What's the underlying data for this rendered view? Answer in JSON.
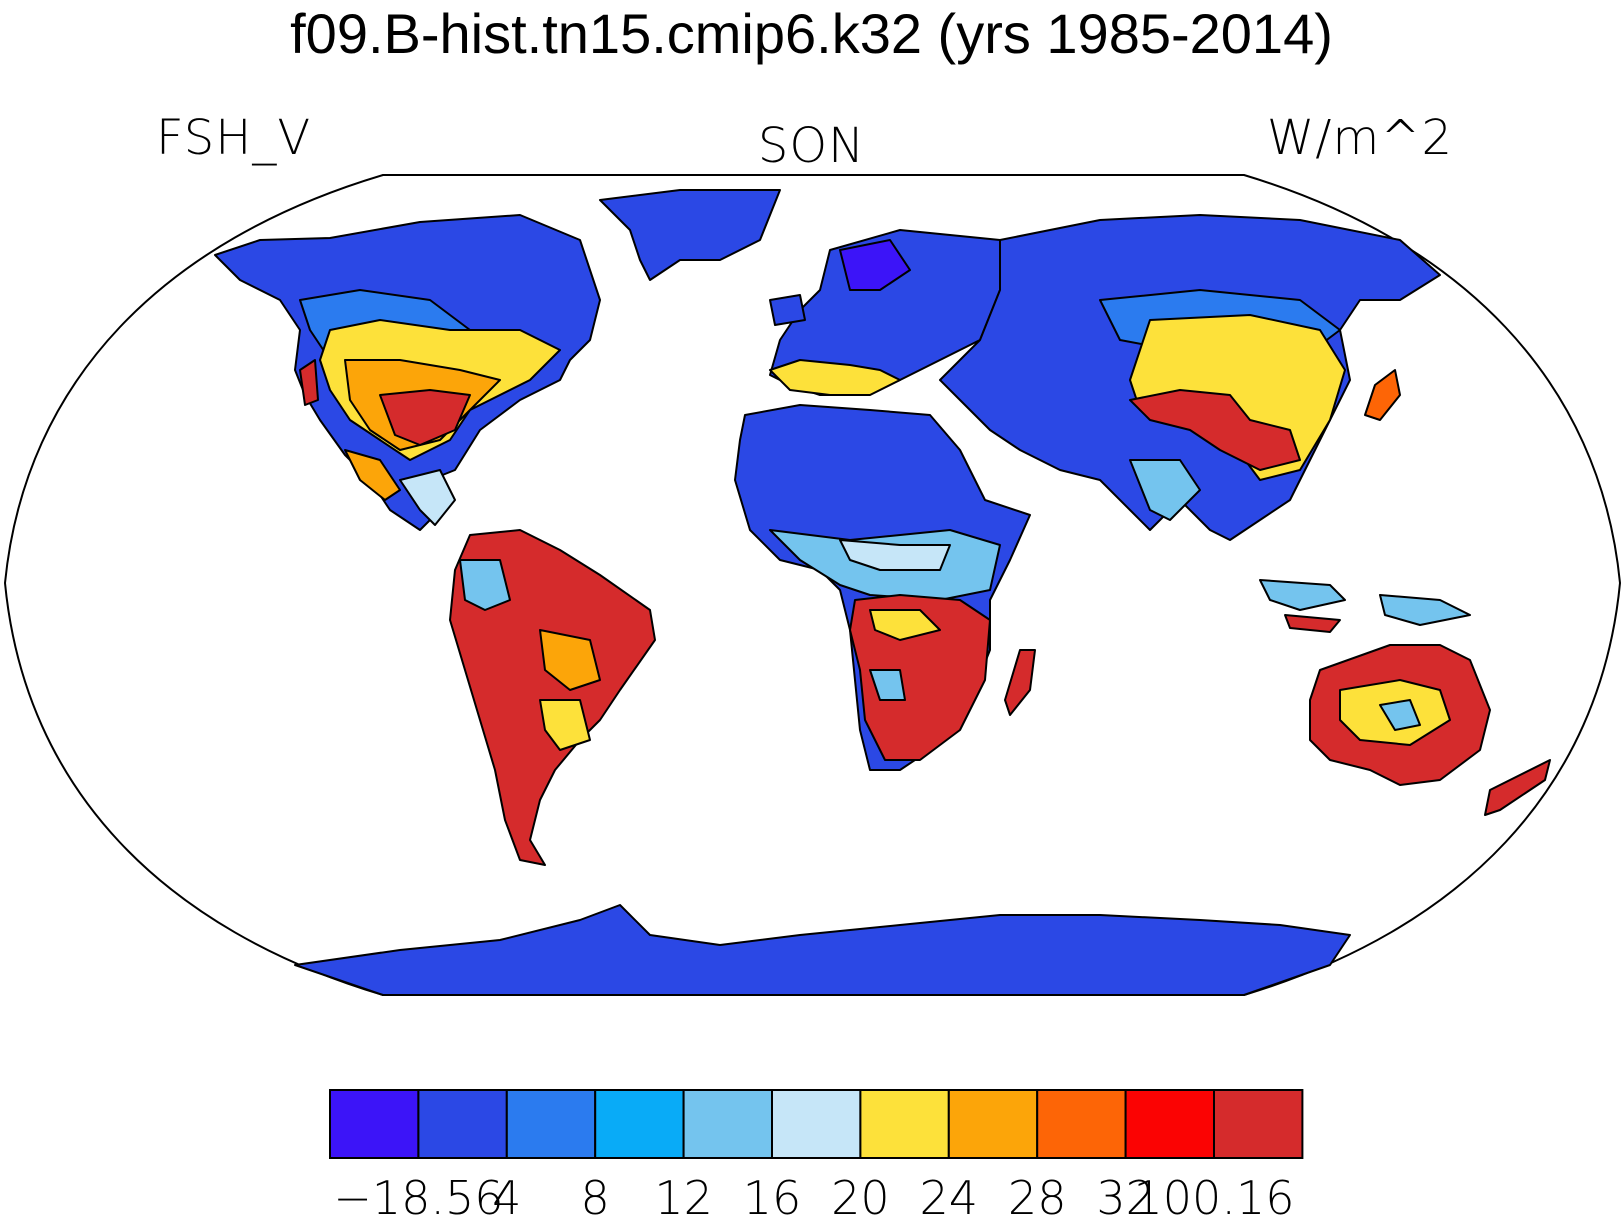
{
  "title": "f09.B-hist.tn15.cmip6.k32 (yrs 1985-2014)",
  "left_label": "FSH_V",
  "center_label": "SON",
  "right_label": "W/m^2",
  "colorbar": {
    "colors": [
      "#3c14f8",
      "#2b48e5",
      "#2b7bef",
      "#09abf7",
      "#74c4ee",
      "#c6e6f8",
      "#fde13a",
      "#fca509",
      "#fd6506",
      "#fb0303",
      "#d52b2c"
    ],
    "tick_labels": [
      "−18.56",
      "4",
      "8",
      "12",
      "16",
      "20",
      "24",
      "28",
      "32",
      "100.16"
    ]
  }
}
